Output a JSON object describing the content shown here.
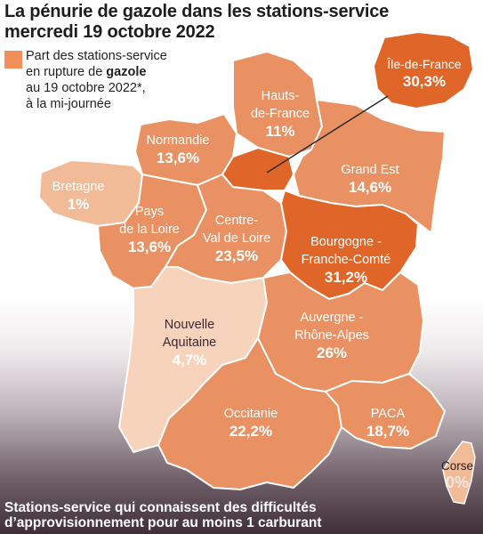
{
  "title_line1": "La pénurie de gazole dans les stations-service",
  "title_line2": "mercredi 19 octobre 2022",
  "legend": {
    "line1": "Part des stations-service",
    "line2_prefix": "en rupture de ",
    "line2_bold": "gazole",
    "line3": "au 19 octobre 2022*,",
    "line4": "à la mi-journée"
  },
  "colors": {
    "dark": "#e06528",
    "medium": "#e99162",
    "light": "#f2bb98",
    "lightest": "#f7d3bc",
    "legend": "#f08f5a"
  },
  "regions": {
    "idf": {
      "name": "Île-de-France",
      "value": "30,3%"
    },
    "hdf": {
      "name1": "Hauts-",
      "name2": "de-France",
      "value": "11%"
    },
    "normandie": {
      "name": "Normandie",
      "value": "13,6%"
    },
    "grand_est": {
      "name": "Grand Est",
      "value": "14,6%"
    },
    "bretagne": {
      "name": "Bretagne",
      "value": "1%"
    },
    "pdl": {
      "name1": "Pays",
      "name2": "de la Loire",
      "value": "13,6%"
    },
    "cvl": {
      "name1": "Centre-",
      "name2": "Val de Loire",
      "value": "23,5%"
    },
    "bfc": {
      "name1": "Bourgogne -",
      "name2": "Franche-Comté",
      "value": "31,2%"
    },
    "na": {
      "name1": "Nouvelle",
      "name2": "Aquitaine",
      "value": "4,7%"
    },
    "ara": {
      "name1": "Auvergne -",
      "name2": "Rhône-Alpes",
      "value": "26%"
    },
    "occitanie": {
      "name": "Occitanie",
      "value": "22,2%"
    },
    "paca": {
      "name": "PACA",
      "value": "18,7%"
    },
    "corse": {
      "name": "Corse",
      "value": "0%"
    }
  },
  "footer_line1": "Stations-service qui connaissent des difficultés",
  "footer_line2": "d’approvisionnement pour au moins 1 carburant"
}
